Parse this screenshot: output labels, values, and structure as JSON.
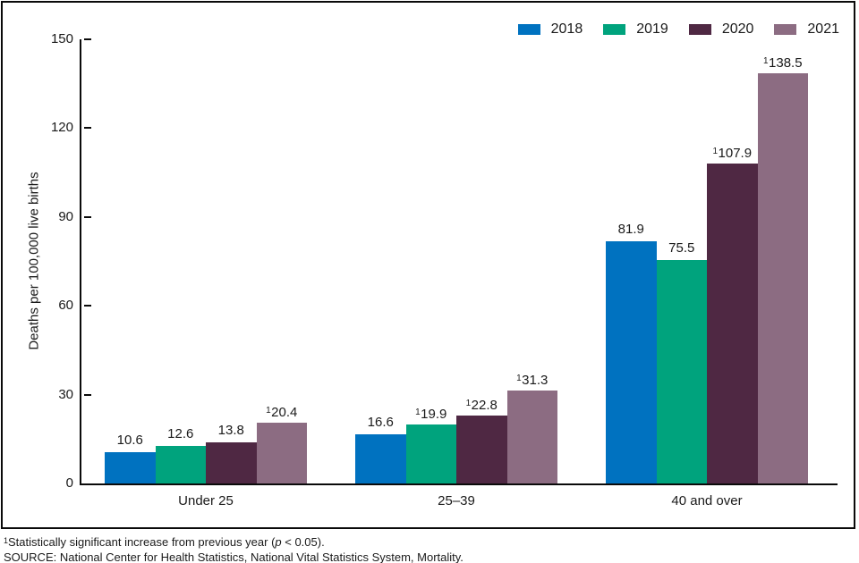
{
  "chart_data": {
    "type": "bar",
    "title": "",
    "categories": [
      "Under 25",
      "25–39",
      "40 and over"
    ],
    "series": [
      {
        "name": "2018",
        "color": "#0072C0",
        "values": [
          10.6,
          16.6,
          81.9
        ],
        "significant": [
          false,
          false,
          false
        ]
      },
      {
        "name": "2019",
        "color": "#00A37D",
        "values": [
          12.6,
          19.9,
          75.5
        ],
        "significant": [
          false,
          true,
          false
        ]
      },
      {
        "name": "2020",
        "color": "#4F2843",
        "values": [
          13.8,
          22.8,
          107.9
        ],
        "significant": [
          false,
          true,
          true
        ]
      },
      {
        "name": "2021",
        "color": "#8C6C82",
        "values": [
          20.4,
          31.3,
          138.5
        ],
        "significant": [
          true,
          true,
          true
        ]
      }
    ],
    "xlabel": "",
    "ylabel": "Deaths per 100,000 live births",
    "ylim": [
      0,
      150
    ],
    "yticks": [
      0,
      30,
      60,
      90,
      120,
      150
    ],
    "grid": false,
    "legend_position": "top-right",
    "significance_marker": "1"
  },
  "footnotes": {
    "note_sup": "1",
    "note_pre": "Statistically significant increase from previous year (",
    "note_italic": "p",
    "note_post": " < 0.05).",
    "source": "SOURCE: National Center for Health Statistics, National Vital Statistics System, Mortality."
  }
}
